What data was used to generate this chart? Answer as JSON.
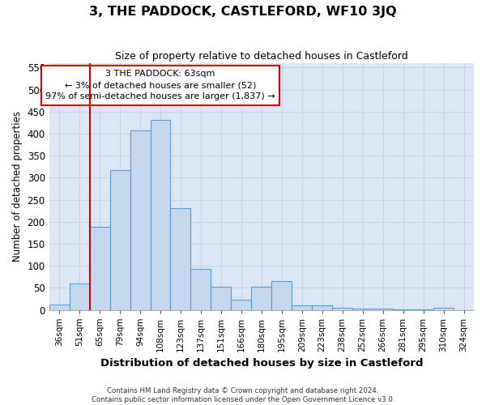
{
  "title": "3, THE PADDOCK, CASTLEFORD, WF10 3JQ",
  "subtitle": "Size of property relative to detached houses in Castleford",
  "xlabel": "Distribution of detached houses by size in Castleford",
  "ylabel": "Number of detached properties",
  "categories": [
    "36sqm",
    "51sqm",
    "65sqm",
    "79sqm",
    "94sqm",
    "108sqm",
    "123sqm",
    "137sqm",
    "151sqm",
    "166sqm",
    "180sqm",
    "195sqm",
    "209sqm",
    "223sqm",
    "238sqm",
    "252sqm",
    "266sqm",
    "281sqm",
    "295sqm",
    "310sqm",
    "324sqm"
  ],
  "values": [
    12,
    60,
    188,
    318,
    408,
    432,
    230,
    92,
    52,
    23,
    52,
    66,
    10,
    10,
    5,
    2,
    2,
    1,
    1,
    5,
    0
  ],
  "bar_color": "#c5d8f0",
  "bar_edge_color": "#5b9bd5",
  "annotation_text_line1": "3 THE PADDOCK: 63sqm",
  "annotation_text_line2": "← 3% of detached houses are smaller (52)",
  "annotation_text_line3": "97% of semi-detached houses are larger (1,837) →",
  "annotation_box_color": "#ffffff",
  "annotation_box_edge_color": "#cc0000",
  "vline_color": "#cc0000",
  "grid_color": "#c8d4e8",
  "bg_color": "#dce6f5",
  "footer_line1": "Contains HM Land Registry data © Crown copyright and database right 2024.",
  "footer_line2": "Contains public sector information licensed under the Open Government Licence v3.0.",
  "ylim": [
    0,
    560
  ],
  "yticks": [
    0,
    50,
    100,
    150,
    200,
    250,
    300,
    350,
    400,
    450,
    500,
    550
  ]
}
